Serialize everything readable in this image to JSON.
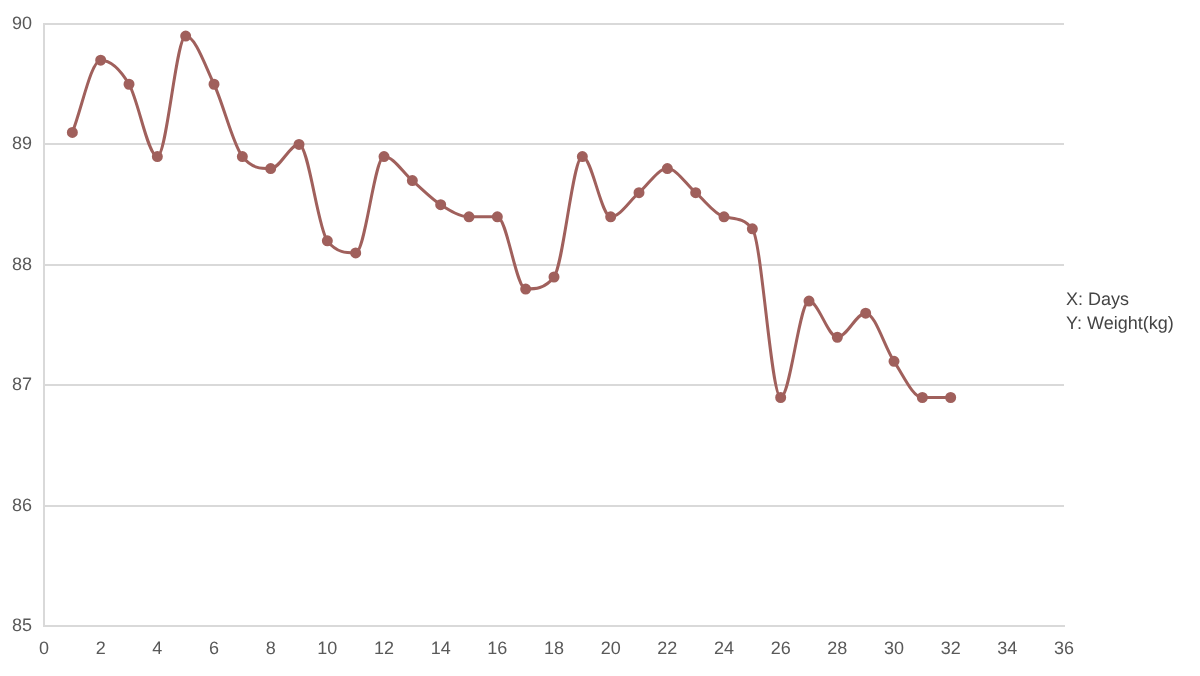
{
  "chart_data": {
    "type": "line",
    "x": [
      1,
      2,
      3,
      4,
      5,
      6,
      7,
      8,
      9,
      10,
      11,
      12,
      13,
      14,
      15,
      16,
      17,
      18,
      19,
      20,
      21,
      22,
      23,
      24,
      25,
      26,
      27,
      28,
      29,
      30,
      31,
      32
    ],
    "series": [
      {
        "color": "#a0605c",
        "values": [
          89.1,
          89.7,
          89.5,
          88.9,
          89.9,
          89.5,
          88.9,
          88.8,
          89.0,
          88.2,
          88.1,
          88.9,
          88.7,
          88.5,
          88.4,
          88.4,
          87.8,
          87.9,
          88.9,
          88.4,
          88.6,
          88.8,
          88.6,
          88.4,
          88.3,
          86.9,
          87.7,
          87.4,
          87.6,
          87.2,
          86.9,
          86.9
        ]
      }
    ],
    "xlim": [
      0,
      36
    ],
    "xticks": [
      0,
      2,
      4,
      6,
      8,
      10,
      12,
      14,
      16,
      18,
      20,
      22,
      24,
      26,
      28,
      30,
      32,
      34,
      36
    ],
    "ylim": [
      85,
      90
    ],
    "yticks": [
      85,
      86,
      87,
      88,
      89,
      90
    ],
    "grid": "y",
    "marker": "circle",
    "line_style": "solid",
    "annotations": [
      "X: Days",
      "Y: Weight(kg)"
    ]
  }
}
